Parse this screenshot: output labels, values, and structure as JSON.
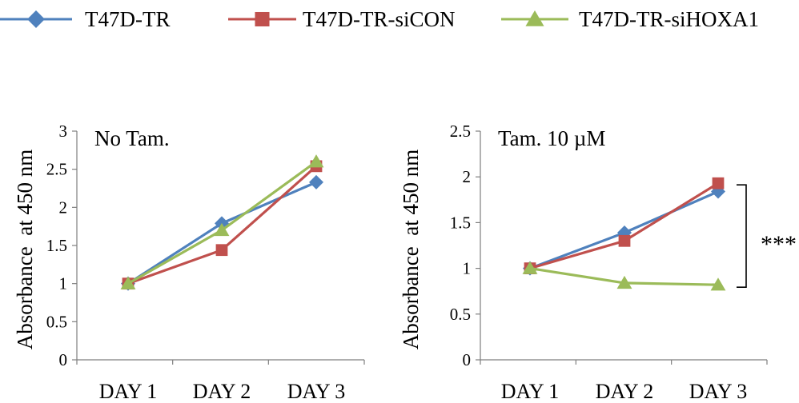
{
  "legend": [
    {
      "name": "T47D-TR",
      "color": "#4F81BD",
      "marker": "diamond"
    },
    {
      "name": "T47D-TR-siCON",
      "color": "#C0504D",
      "marker": "square"
    },
    {
      "name": "T47D-TR-siHOXA1",
      "color": "#9BBB59",
      "marker": "triangle"
    }
  ],
  "chart_data": [
    {
      "type": "line",
      "title": "No Tam.",
      "ylabel": "Absorbance  at 450 nm",
      "categories": [
        "DAY 1",
        "DAY 2",
        "DAY 3"
      ],
      "ylim": [
        0,
        3
      ],
      "yticks": [
        0,
        0.5,
        1,
        1.5,
        2,
        2.5,
        3
      ],
      "ytick_labels": [
        "0",
        "0.5",
        "1",
        "1.5",
        "2",
        "2.5",
        "3"
      ],
      "grid": false,
      "series": [
        {
          "name": "T47D-TR",
          "values": [
            1.0,
            1.79,
            2.33
          ]
        },
        {
          "name": "T47D-TR-siCON",
          "values": [
            1.0,
            1.44,
            2.54
          ]
        },
        {
          "name": "T47D-TR-siHOXA1",
          "values": [
            1.0,
            1.7,
            2.6
          ]
        }
      ]
    },
    {
      "type": "line",
      "title": "Tam. 10 µM",
      "ylabel": "Absorbance  at 450 nm",
      "categories": [
        "DAY 1",
        "DAY 2",
        "DAY 3"
      ],
      "ylim": [
        0,
        2.5
      ],
      "yticks": [
        0,
        0.5,
        1,
        1.5,
        2,
        2.5
      ],
      "ytick_labels": [
        "0",
        "0.5",
        "1",
        "1.5",
        "2",
        "2.5"
      ],
      "grid": false,
      "annotation": "***",
      "series": [
        {
          "name": "T47D-TR",
          "values": [
            1.0,
            1.39,
            1.84
          ]
        },
        {
          "name": "T47D-TR-siCON",
          "values": [
            1.0,
            1.3,
            1.93
          ]
        },
        {
          "name": "T47D-TR-siHOXA1",
          "values": [
            1.0,
            0.84,
            0.82
          ]
        }
      ]
    }
  ]
}
